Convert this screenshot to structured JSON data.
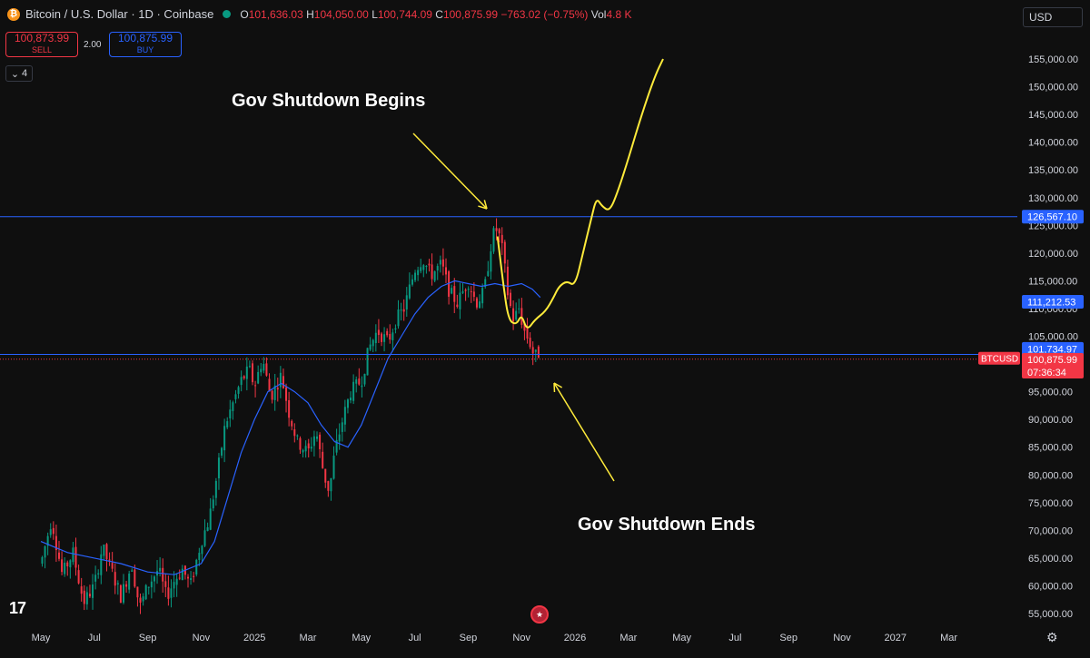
{
  "header": {
    "symbol": "Bitcoin / U.S. Dollar · 1D · Coinbase",
    "o_label": "O",
    "o": "101,636.03",
    "h_label": "H",
    "h": "104,050.00",
    "l_label": "L",
    "l": "100,744.09",
    "c_label": "C",
    "c": "100,875.99",
    "change": "−763.02 (−0.75%)",
    "vol_label": "Vol",
    "vol": "4.8 K"
  },
  "trade": {
    "sell_price": "100,873.99",
    "sell_label": "SELL",
    "spread": "2.00",
    "buy_price": "100,875.99",
    "buy_label": "BUY"
  },
  "indicators_count": "4",
  "currency": "USD",
  "colors": {
    "background": "#0f0f0f",
    "up": "#089981",
    "down": "#f23645",
    "ma": "#2962ff",
    "hline": "#2962ff",
    "annotation": "#ffeb3b",
    "price_tag": "#f23645"
  },
  "chart_data": {
    "type": "candlestick",
    "y_axis": {
      "min": 52500,
      "max": 157000,
      "ticks": [
        55000,
        60000,
        65000,
        70000,
        75000,
        80000,
        85000,
        90000,
        95000,
        100000,
        105000,
        110000,
        115000,
        120000,
        125000,
        130000,
        135000,
        140000,
        145000,
        150000,
        155000
      ],
      "tick_labels": [
        "55,000.00",
        "60,000.00",
        "65,000.00",
        "70,000.00",
        "75,000.00",
        "80,000.00",
        "85,000.00",
        "90,000.00",
        "95,000.00",
        "100,000.00",
        "105,000.00",
        "110,000.00",
        "115,000.00",
        "120,000.00",
        "125,000.00",
        "130,000.00",
        "135,000.00",
        "140,000.00",
        "145,000.00",
        "150,000.00",
        "155,000.00"
      ]
    },
    "x_axis": {
      "labels": [
        "May",
        "Jul",
        "Sep",
        "Nov",
        "2025",
        "Mar",
        "May",
        "Jul",
        "Sep",
        "Nov",
        "2026",
        "Mar",
        "May",
        "Jul",
        "Sep",
        "Nov",
        "2027",
        "Mar"
      ],
      "months_index": [
        0,
        2,
        4,
        6,
        8,
        10,
        12,
        14,
        16,
        18,
        20,
        22,
        24,
        26,
        28,
        30,
        32,
        34
      ]
    },
    "price_path": [
      [
        0,
        64000
      ],
      [
        0.4,
        72000
      ],
      [
        0.8,
        62000
      ],
      [
        1.2,
        66000
      ],
      [
        1.6,
        57000
      ],
      [
        2,
        60000
      ],
      [
        2.3,
        67000
      ],
      [
        2.7,
        62000
      ],
      [
        3,
        58000
      ],
      [
        3.4,
        64000
      ],
      [
        3.7,
        56000
      ],
      [
        4,
        60000
      ],
      [
        4.4,
        63000
      ],
      [
        4.7,
        58000
      ],
      [
        5,
        61000
      ],
      [
        5.3,
        63000
      ],
      [
        5.6,
        60000
      ],
      [
        6,
        68000
      ],
      [
        6.3,
        72000
      ],
      [
        6.6,
        80000
      ],
      [
        6.9,
        89000
      ],
      [
        7.2,
        93000
      ],
      [
        7.5,
        97000
      ],
      [
        7.8,
        99000
      ],
      [
        8,
        96000
      ],
      [
        8.3,
        101000
      ],
      [
        8.6,
        94000
      ],
      [
        9,
        98000
      ],
      [
        9.3,
        91000
      ],
      [
        9.6,
        86000
      ],
      [
        10,
        84000
      ],
      [
        10.3,
        88000
      ],
      [
        10.6,
        80000
      ],
      [
        10.8,
        77000
      ],
      [
        11,
        84000
      ],
      [
        11.3,
        90000
      ],
      [
        11.6,
        95000
      ],
      [
        12,
        97000
      ],
      [
        12.3,
        103000
      ],
      [
        12.6,
        106000
      ],
      [
        13,
        104000
      ],
      [
        13.3,
        108000
      ],
      [
        13.6,
        110000
      ],
      [
        14,
        117000
      ],
      [
        14.3,
        119000
      ],
      [
        14.6,
        116000
      ],
      [
        15,
        118000
      ],
      [
        15.3,
        113000
      ],
      [
        15.6,
        111000
      ],
      [
        16,
        115000
      ],
      [
        16.3,
        111000
      ],
      [
        16.6,
        113000
      ],
      [
        16.9,
        123000
      ],
      [
        17.1,
        124500
      ],
      [
        17.3,
        120000
      ],
      [
        17.5,
        112000
      ],
      [
        17.7,
        108000
      ],
      [
        17.9,
        110000
      ],
      [
        18.1,
        106000
      ],
      [
        18.3,
        104000
      ],
      [
        18.5,
        101000
      ],
      [
        18.6,
        102500
      ],
      [
        18.7,
        100876
      ]
    ],
    "ma_path": [
      [
        0,
        68000
      ],
      [
        1,
        66000
      ],
      [
        2,
        65000
      ],
      [
        3,
        64000
      ],
      [
        4,
        62500
      ],
      [
        5,
        62000
      ],
      [
        6,
        64000
      ],
      [
        6.5,
        68000
      ],
      [
        7,
        76000
      ],
      [
        7.5,
        84000
      ],
      [
        8,
        90000
      ],
      [
        8.5,
        95000
      ],
      [
        9,
        96500
      ],
      [
        9.5,
        95000
      ],
      [
        10,
        93000
      ],
      [
        10.5,
        89000
      ],
      [
        11,
        86000
      ],
      [
        11.5,
        85000
      ],
      [
        12,
        89000
      ],
      [
        12.5,
        95000
      ],
      [
        13,
        101000
      ],
      [
        13.5,
        105000
      ],
      [
        14,
        109000
      ],
      [
        14.5,
        112000
      ],
      [
        15,
        114000
      ],
      [
        15.5,
        115000
      ],
      [
        16,
        114500
      ],
      [
        16.5,
        114000
      ],
      [
        17,
        114500
      ],
      [
        17.5,
        114000
      ],
      [
        18,
        114500
      ],
      [
        18.4,
        113500
      ],
      [
        18.7,
        112000
      ]
    ],
    "projection_path": [
      [
        17.1,
        123000
      ],
      [
        17.3,
        115000
      ],
      [
        17.5,
        108000
      ],
      [
        17.8,
        107000
      ],
      [
        18.0,
        109000
      ],
      [
        18.2,
        106000
      ],
      [
        18.5,
        108000
      ],
      [
        18.9,
        109500
      ],
      [
        19.2,
        112000
      ],
      [
        19.4,
        114000
      ],
      [
        19.7,
        115000
      ],
      [
        20.0,
        114000
      ],
      [
        20.3,
        120000
      ],
      [
        20.6,
        126000
      ],
      [
        20.8,
        130000
      ],
      [
        21.0,
        128500
      ],
      [
        21.3,
        127500
      ],
      [
        21.6,
        131000
      ],
      [
        22.0,
        137000
      ],
      [
        22.5,
        145000
      ],
      [
        23.0,
        152000
      ],
      [
        23.3,
        155000
      ]
    ],
    "hlines": [
      {
        "value": 126567.1,
        "label": "126,567.10",
        "style": "solid"
      },
      {
        "value": 101734.97,
        "label": "101,734.97",
        "style": "solid"
      },
      {
        "value": 100875.99,
        "label": "100,875.99",
        "style": "dotted"
      }
    ],
    "price_labels": {
      "ma_value": "111,212.53",
      "last_price": "100,875.99",
      "countdown": "07:36:34",
      "symbol_tag": "BTCUSD"
    },
    "annotations": [
      {
        "text": "Gov Shutdown Begins"
      },
      {
        "text": "Gov Shutdown Ends"
      }
    ]
  }
}
